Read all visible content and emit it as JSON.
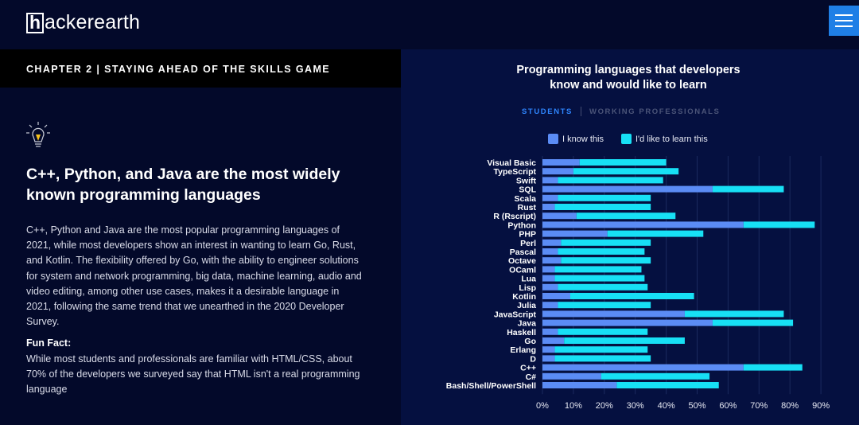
{
  "header": {
    "logo_mark": "h",
    "logo_text": "ackerearth"
  },
  "chapter": {
    "title": "CHAPTER 2 | STAYING AHEAD OF THE SKILLS GAME"
  },
  "article": {
    "headline": "C++, Python, and Java are the most widely known programming languages",
    "body": "C++, Python and Java are the most popular programming languages of 2021, while most developers show an interest in wanting to learn Go, Rust, and Kotlin. The flexibility offered by Go, with the ability to engineer solutions for system and network programming, big data, machine learning, audio and video editing, among other use cases, makes it a desirable language in 2021, following the same trend that we unearthed in the 2020 Developer Survey.",
    "fun_fact_title": "Fun Fact:",
    "fun_fact_text": "While most students and professionals are familiar with HTML/CSS, about 70% of the developers we surveyed say that HTML isn't a real programming language"
  },
  "chart_tabs": {
    "active": "STUDENTS",
    "inactive": "WORKING PROFESSIONALS"
  },
  "colors": {
    "know": "#5b8cf5",
    "learn": "#17e0f5",
    "accent": "#2f86ff"
  },
  "chart_data": {
    "type": "bar",
    "orientation": "horizontal",
    "stacked": true,
    "title": "Programming languages that developers know and would like to learn",
    "categories": [
      "Visual Basic",
      "TypeScript",
      "Swift",
      "SQL",
      "Scala",
      "Rust",
      "R (Rscript)",
      "Python",
      "PHP",
      "Perl",
      "Pascal",
      "Octave",
      "OCaml",
      "Lua",
      "Lisp",
      "Kotlin",
      "Julia",
      "JavaScript",
      "Java",
      "Haskell",
      "Go",
      "Erlang",
      "D",
      "C++",
      "C#",
      "Bash/Shell/PowerShell"
    ],
    "series": [
      {
        "name": "I know this",
        "values": [
          12,
          10,
          5,
          55,
          5,
          4,
          11,
          65,
          21,
          6,
          5,
          6,
          4,
          4,
          5,
          9,
          5,
          46,
          55,
          5,
          7,
          4,
          4,
          65,
          19,
          24
        ]
      },
      {
        "name": "I'd like to learn this",
        "values": [
          28,
          34,
          34,
          23,
          30,
          31,
          32,
          23,
          31,
          29,
          28,
          29,
          28,
          29,
          29,
          40,
          30,
          32,
          26,
          29,
          39,
          30,
          31,
          19,
          35,
          33
        ]
      }
    ],
    "xlim": [
      0,
      90
    ],
    "xticks": [
      "0%",
      "10%",
      "20%",
      "30%",
      "40%",
      "50%",
      "60%",
      "70%",
      "80%",
      "90%"
    ],
    "grid": true,
    "legend": "top"
  }
}
